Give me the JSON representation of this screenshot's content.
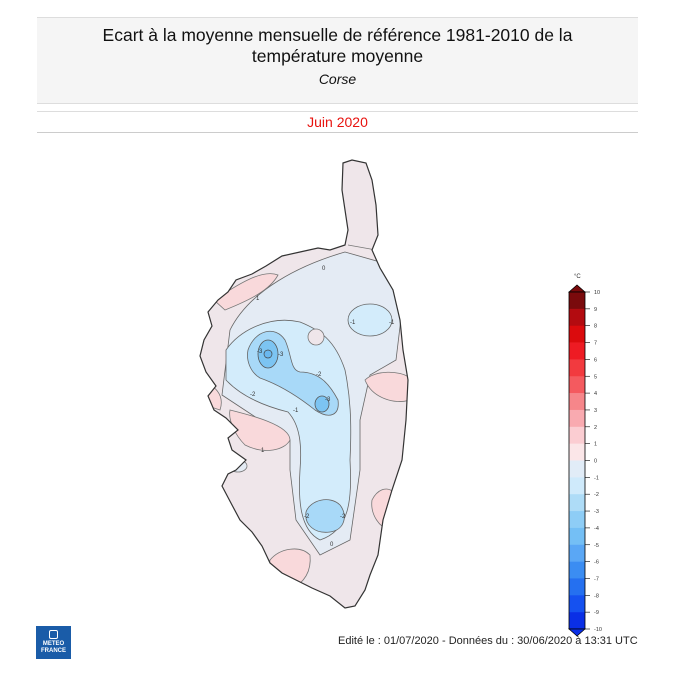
{
  "header": {
    "title": "Ecart à la moyenne mensuelle de référence 1981-2010 de la température moyenne",
    "title_line1": "Ecart à la moyenne mensuelle de référence 1981-2010 de la",
    "title_line2": "température moyenne",
    "region": "Corse"
  },
  "period": {
    "label": "Juin 2020",
    "color": "#e8130f"
  },
  "map": {
    "region": "Corse",
    "contour_labels": [
      "0",
      "-1",
      "-2",
      "-3",
      "1",
      "-1",
      "-2",
      "-3",
      "0",
      "1"
    ],
    "anomaly_zones": [
      {
        "area": "north-west coast",
        "value_range": "0 to 1",
        "color": "#f9d9db"
      },
      {
        "area": "cap corse / east coast",
        "value_range": "0 to 1",
        "color": "#efe6ea"
      },
      {
        "area": "central north",
        "value_range": "-1 to 0",
        "color": "#e4ebf4"
      },
      {
        "area": "central mountains",
        "value_range": "-2 to -1",
        "color": "#d3ecfb"
      },
      {
        "area": "west-central peak",
        "value_range": "-3 to -2",
        "color": "#a8d9f8"
      },
      {
        "area": "west-central core",
        "value_range": "< -3",
        "color": "#7cc4f2"
      },
      {
        "area": "south-central",
        "value_range": "-3 to -2",
        "color": "#a8d9f8"
      },
      {
        "area": "south / south-west",
        "value_range": "0 to 1",
        "color": "#f9d9db"
      }
    ]
  },
  "legend": {
    "unit": "°C",
    "ticks": [
      "10",
      "9",
      "8",
      "7",
      "6",
      "5",
      "4",
      "3",
      "2",
      "1",
      "0",
      "-1",
      "-2",
      "-3",
      "-4",
      "-5",
      "-6",
      "-7",
      "-8",
      "-9",
      "-10"
    ],
    "colors": [
      "#7a0a0c",
      "#b30b10",
      "#db0b0d",
      "#ee1b23",
      "#f23a3f",
      "#f45a5f",
      "#f6868a",
      "#f9aab0",
      "#fbcdd2",
      "#fbe6e8",
      "#ecebf2",
      "#e1ecf7",
      "#cfeafb",
      "#aedcf7",
      "#8ecdf6",
      "#74bff5",
      "#5aa7f5",
      "#3b8df2",
      "#2570f0",
      "#1551f0",
      "#0a2fe6"
    ]
  },
  "footer": {
    "edited": "Edité le : 01/07/2020 - Données du : 30/06/2020 à 13:31 UTC",
    "logo_line1": "METEO",
    "logo_line2": "FRANCE"
  }
}
